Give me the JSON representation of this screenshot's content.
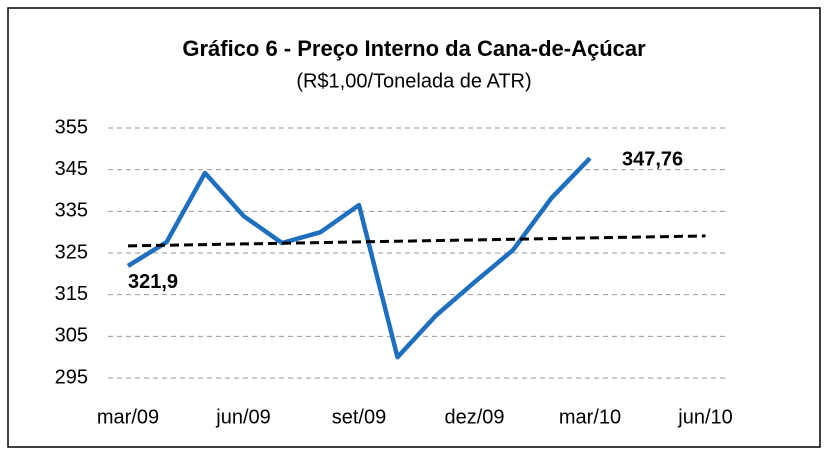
{
  "chart_data": {
    "type": "line",
    "title": "Gráfico 6 - Preço Interno da Cana-de-Açúcar",
    "subtitle": "(R$1,00/Tonelada de ATR)",
    "categories": [
      "mar/09",
      null,
      null,
      "jun/09",
      null,
      null,
      "set/09",
      null,
      null,
      "dez/09",
      null,
      null,
      "mar/10",
      null,
      null,
      "jun/10"
    ],
    "series": [
      {
        "color": "#1f6fbf",
        "values": [
          321.9,
          327.6,
          344.2,
          333.9,
          327.4,
          330.0,
          336.5,
          300.0,
          310.0,
          318.0,
          325.7,
          338.2,
          347.76,
          null,
          null,
          null
        ],
        "value_labels": [
          "321,9",
          null,
          null,
          null,
          null,
          null,
          null,
          null,
          null,
          null,
          null,
          null,
          "347,76",
          null,
          null,
          null
        ]
      },
      {
        "color": "#000000",
        "dashed": true,
        "values": [
          326.7,
          326.86,
          327.02,
          327.18,
          327.34,
          327.5,
          327.66,
          327.82,
          327.98,
          328.14,
          328.3,
          328.46,
          328.62,
          328.78,
          328.94,
          329.1
        ]
      }
    ],
    "ylim": [
      295,
      355
    ],
    "yticks": [
      295,
      305,
      315,
      325,
      335,
      345,
      355
    ],
    "grid": true
  }
}
